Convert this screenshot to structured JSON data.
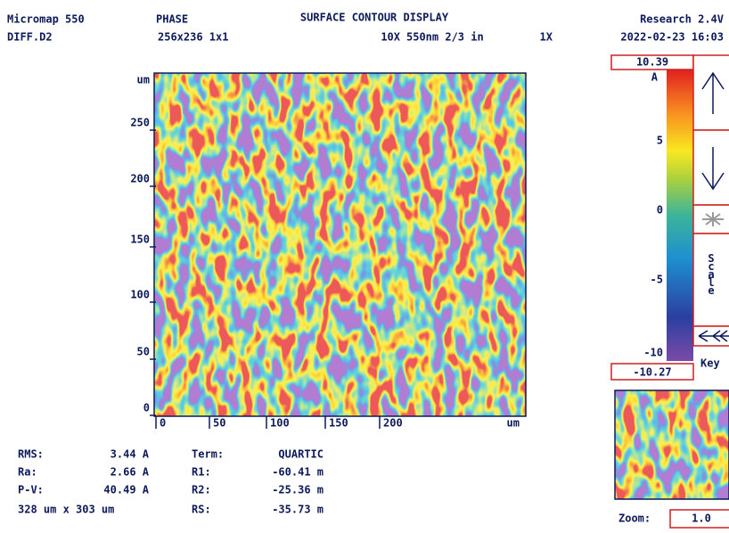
{
  "header": {
    "product": "Micromap 550",
    "mode": "PHASE",
    "title": "SURFACE CONTOUR DISPLAY",
    "version": "Research 2.4V",
    "file": "DIFF.D2",
    "size": "256x236 1x1",
    "objective": "10X",
    "wavelength": "550nm 2/3 in",
    "zoom_factor": "1X",
    "datetime": "2022-02-23 16:03"
  },
  "map": {
    "y_unit": "um",
    "y_ticks": [
      "250",
      "200",
      "150",
      "100",
      "50",
      "0"
    ],
    "x_ticks": [
      "0",
      "50",
      "100",
      "150",
      "200"
    ],
    "x_unit": "um"
  },
  "scale": {
    "max": "10.39",
    "unit": "A",
    "ticks": [
      "5",
      "0",
      "-5",
      "-10"
    ],
    "min": "-10.27",
    "label": "Scale",
    "key": "Key"
  },
  "stats": {
    "left": [
      {
        "label": "RMS:",
        "value": "3.44 A"
      },
      {
        "label": "Ra:",
        "value": "2.66 A"
      },
      {
        "label": "P-V:",
        "value": "40.49 A"
      }
    ],
    "dimensions": "328 um x 303 um",
    "right": [
      {
        "label": "Term:",
        "value": "QUARTIC"
      },
      {
        "label": "R1:",
        "value": "-60.41 m"
      },
      {
        "label": "R2:",
        "value": "-25.36 m"
      },
      {
        "label": "RS:",
        "value": "-35.73 m"
      }
    ]
  },
  "zoom": {
    "label": "Zoom:",
    "value": "1.0"
  }
}
